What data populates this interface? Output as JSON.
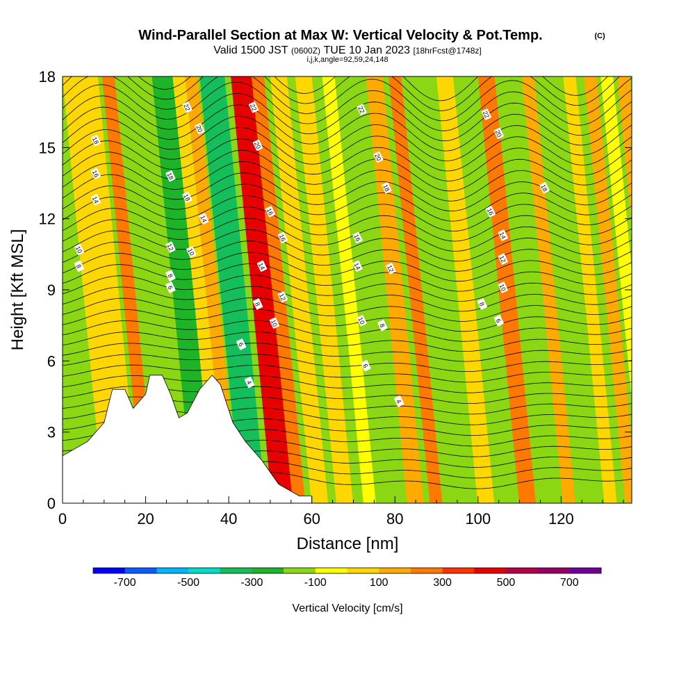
{
  "header": {
    "title": "Wind-Parallel Section at Max W: Vertical Velocity & Pot.Temp.",
    "copyright": "(C)",
    "valid_prefix": "Valid 1500 JST",
    "valid_utc": "(0600Z)",
    "valid_date": "TUE 10 Jan 2023",
    "forecast": "[18hrFcst@1748z]",
    "indices": "i,j,k,angle=92,59,24,148"
  },
  "chart_data": {
    "type": "heatmap",
    "xlabel": "Distance [nm]",
    "ylabel": "Height [Kft MSL]",
    "xlim": [
      0,
      137
    ],
    "ylim": [
      0,
      18
    ],
    "xticks": [
      0,
      20,
      40,
      60,
      80,
      100,
      120
    ],
    "yticks": [
      0,
      3,
      6,
      9,
      12,
      15,
      18
    ],
    "vertical_velocity_bands": [
      {
        "center": 2,
        "width": 4,
        "value": 0
      },
      {
        "center": 6,
        "width": 5,
        "value": 50
      },
      {
        "center": 11,
        "width": 3,
        "value": 200
      },
      {
        "center": 16,
        "width": 4,
        "value": -150
      },
      {
        "center": 24,
        "width": 5,
        "value": -250
      },
      {
        "center": 28,
        "width": 3,
        "value": 0
      },
      {
        "center": 31,
        "width": 3,
        "value": 150
      },
      {
        "center": 36,
        "width": 6,
        "value": -400
      },
      {
        "center": 43,
        "width": 5,
        "value": 450
      },
      {
        "center": 47,
        "width": 3,
        "value": 200
      },
      {
        "center": 52,
        "width": 4,
        "value": 0
      },
      {
        "center": 58,
        "width": 4,
        "value": 50
      },
      {
        "center": 64,
        "width": 3,
        "value": -80
      },
      {
        "center": 70,
        "width": 4,
        "value": -200
      },
      {
        "center": 75,
        "width": 4,
        "value": 100
      },
      {
        "center": 80,
        "width": 3,
        "value": 200
      },
      {
        "center": 86,
        "width": 3,
        "value": -120
      },
      {
        "center": 92,
        "width": 4,
        "value": 50
      },
      {
        "center": 97,
        "width": 3,
        "value": -150
      },
      {
        "center": 102,
        "width": 4,
        "value": 250
      },
      {
        "center": 107,
        "width": 4,
        "value": -200
      },
      {
        "center": 112,
        "width": 3,
        "value": 150
      },
      {
        "center": 117,
        "width": 3,
        "value": -150
      },
      {
        "center": 122,
        "width": 3,
        "value": 0
      },
      {
        "center": 127,
        "width": 3,
        "value": 100
      },
      {
        "center": 131,
        "width": 3,
        "value": -100
      },
      {
        "center": 135,
        "width": 3,
        "value": 100
      }
    ],
    "terrain": [
      {
        "x": 0,
        "h": 2.0
      },
      {
        "x": 6,
        "h": 2.6
      },
      {
        "x": 10,
        "h": 3.4
      },
      {
        "x": 12,
        "h": 4.8
      },
      {
        "x": 15,
        "h": 4.8
      },
      {
        "x": 17,
        "h": 4.0
      },
      {
        "x": 20,
        "h": 4.6
      },
      {
        "x": 21,
        "h": 5.4
      },
      {
        "x": 24,
        "h": 5.4
      },
      {
        "x": 26,
        "h": 4.6
      },
      {
        "x": 28,
        "h": 3.6
      },
      {
        "x": 30,
        "h": 3.8
      },
      {
        "x": 33,
        "h": 4.8
      },
      {
        "x": 36,
        "h": 5.4
      },
      {
        "x": 38,
        "h": 5.0
      },
      {
        "x": 41,
        "h": 3.4
      },
      {
        "x": 44,
        "h": 2.6
      },
      {
        "x": 48,
        "h": 1.8
      },
      {
        "x": 52,
        "h": 0.8
      },
      {
        "x": 57,
        "h": 0.3
      },
      {
        "x": 60,
        "h": 0.3
      }
    ],
    "theta_contour_labels": [
      {
        "text": "22",
        "x": 30,
        "y": 16.7
      },
      {
        "text": "22",
        "x": 46,
        "y": 16.7
      },
      {
        "text": "22",
        "x": 72,
        "y": 16.6
      },
      {
        "text": "22",
        "x": 102,
        "y": 16.4
      },
      {
        "text": "20",
        "x": 33,
        "y": 15.8
      },
      {
        "text": "20",
        "x": 47,
        "y": 15.1
      },
      {
        "text": "20",
        "x": 76,
        "y": 14.6
      },
      {
        "text": "20",
        "x": 105,
        "y": 15.6
      },
      {
        "text": "18",
        "x": 8,
        "y": 15.3
      },
      {
        "text": "18",
        "x": 26,
        "y": 13.8
      },
      {
        "text": "18",
        "x": 30,
        "y": 12.9
      },
      {
        "text": "18",
        "x": 78,
        "y": 13.3
      },
      {
        "text": "18",
        "x": 116,
        "y": 13.3
      },
      {
        "text": "16",
        "x": 8,
        "y": 13.9
      },
      {
        "text": "16",
        "x": 50,
        "y": 12.3
      },
      {
        "text": "16",
        "x": 53,
        "y": 11.2
      },
      {
        "text": "16",
        "x": 71,
        "y": 11.2
      },
      {
        "text": "16",
        "x": 103,
        "y": 12.3
      },
      {
        "text": "14",
        "x": 8,
        "y": 12.8
      },
      {
        "text": "14",
        "x": 34,
        "y": 12.0
      },
      {
        "text": "14",
        "x": 48,
        "y": 10.0
      },
      {
        "text": "14",
        "x": 71,
        "y": 10.0
      },
      {
        "text": "14",
        "x": 106,
        "y": 11.3
      },
      {
        "text": "12",
        "x": 26,
        "y": 10.8
      },
      {
        "text": "12",
        "x": 53,
        "y": 8.7
      },
      {
        "text": "12",
        "x": 79,
        "y": 9.9
      },
      {
        "text": "12",
        "x": 106,
        "y": 10.3
      },
      {
        "text": "10",
        "x": 4,
        "y": 10.7
      },
      {
        "text": "10",
        "x": 31,
        "y": 10.6
      },
      {
        "text": "10",
        "x": 51,
        "y": 7.6
      },
      {
        "text": "10",
        "x": 72,
        "y": 7.7
      },
      {
        "text": "10",
        "x": 106,
        "y": 9.1
      },
      {
        "text": "8",
        "x": 4,
        "y": 10.0
      },
      {
        "text": "8",
        "x": 26,
        "y": 9.6
      },
      {
        "text": "8",
        "x": 47,
        "y": 8.4
      },
      {
        "text": "8",
        "x": 77,
        "y": 7.5
      },
      {
        "text": "8",
        "x": 101,
        "y": 8.4
      },
      {
        "text": "6",
        "x": 26,
        "y": 9.1
      },
      {
        "text": "6",
        "x": 43,
        "y": 6.7
      },
      {
        "text": "6",
        "x": 73,
        "y": 5.8
      },
      {
        "text": "6",
        "x": 105,
        "y": 7.7
      },
      {
        "text": "4",
        "x": 45,
        "y": 5.1
      },
      {
        "text": "4",
        "x": 81,
        "y": 4.3
      }
    ]
  },
  "colorbar": {
    "label": "Vertical Velocity [cm/s]",
    "tick_labels": [
      "-700",
      "-500",
      "-300",
      "-100",
      "100",
      "300",
      "500",
      "700"
    ],
    "tick_values": [
      -700,
      -500,
      -300,
      -100,
      100,
      300,
      500,
      700
    ],
    "range": [
      -800,
      800
    ],
    "colors": [
      "#0000ff",
      "#0a5aff",
      "#00b4ff",
      "#00dcc8",
      "#14be5a",
      "#1eb428",
      "#8cd714",
      "#ffff00",
      "#ffd700",
      "#ffaa00",
      "#ff7800",
      "#ff3200",
      "#e60000",
      "#b40046",
      "#960064",
      "#6e0096"
    ]
  }
}
